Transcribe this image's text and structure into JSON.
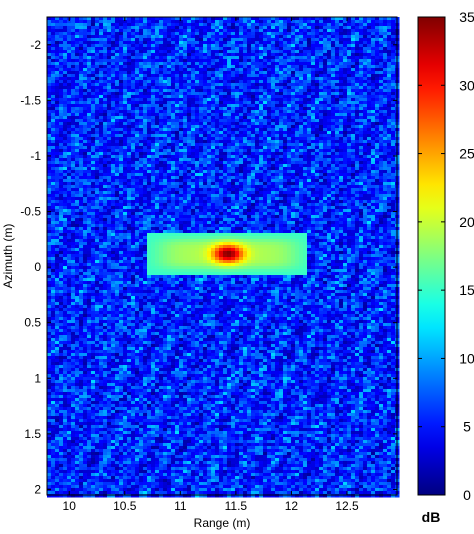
{
  "chart_data": {
    "type": "heatmap",
    "xlabel": "Range (m)",
    "ylabel": "Azimuth (m)",
    "xlim": [
      9.8,
      12.95
    ],
    "ylim": [
      -2.25,
      2.05
    ],
    "y_axis_direction": "reversed",
    "x_ticks": [
      {
        "value": 10,
        "label": "10"
      },
      {
        "value": 10.5,
        "label": "10.5"
      },
      {
        "value": 11,
        "label": "11"
      },
      {
        "value": 11.5,
        "label": "11.5"
      },
      {
        "value": 12,
        "label": "12"
      },
      {
        "value": 12.5,
        "label": "12.5"
      }
    ],
    "y_ticks": [
      {
        "value": -2,
        "label": "-2"
      },
      {
        "value": -1.5,
        "label": "-1.5"
      },
      {
        "value": -1,
        "label": "-1"
      },
      {
        "value": -0.5,
        "label": "-0.5"
      },
      {
        "value": 0,
        "label": "0"
      },
      {
        "value": 0.5,
        "label": "0.5"
      },
      {
        "value": 1,
        "label": "1"
      },
      {
        "value": 1.5,
        "label": "1.5"
      },
      {
        "value": 2,
        "label": "2"
      }
    ],
    "colorbar": {
      "colormap": "jet",
      "range": [
        0,
        35
      ],
      "unit": "dB",
      "ticks": [
        {
          "value": 0,
          "label": "0"
        },
        {
          "value": 5,
          "label": "5"
        },
        {
          "value": 10,
          "label": "10"
        },
        {
          "value": 15,
          "label": "15"
        },
        {
          "value": 20,
          "label": "20"
        },
        {
          "value": 25,
          "label": "25"
        },
        {
          "value": 30,
          "label": "30"
        },
        {
          "value": 35,
          "label": "35"
        }
      ]
    },
    "background_level_db": [
      3,
      10
    ],
    "target": {
      "range_center": 11.43,
      "azimuth_center": -0.12,
      "range_extent": [
        10.85,
        12.1
      ],
      "azimuth_extent": [
        -0.25,
        0.05
      ],
      "peak_db": 35
    },
    "grid": false
  }
}
